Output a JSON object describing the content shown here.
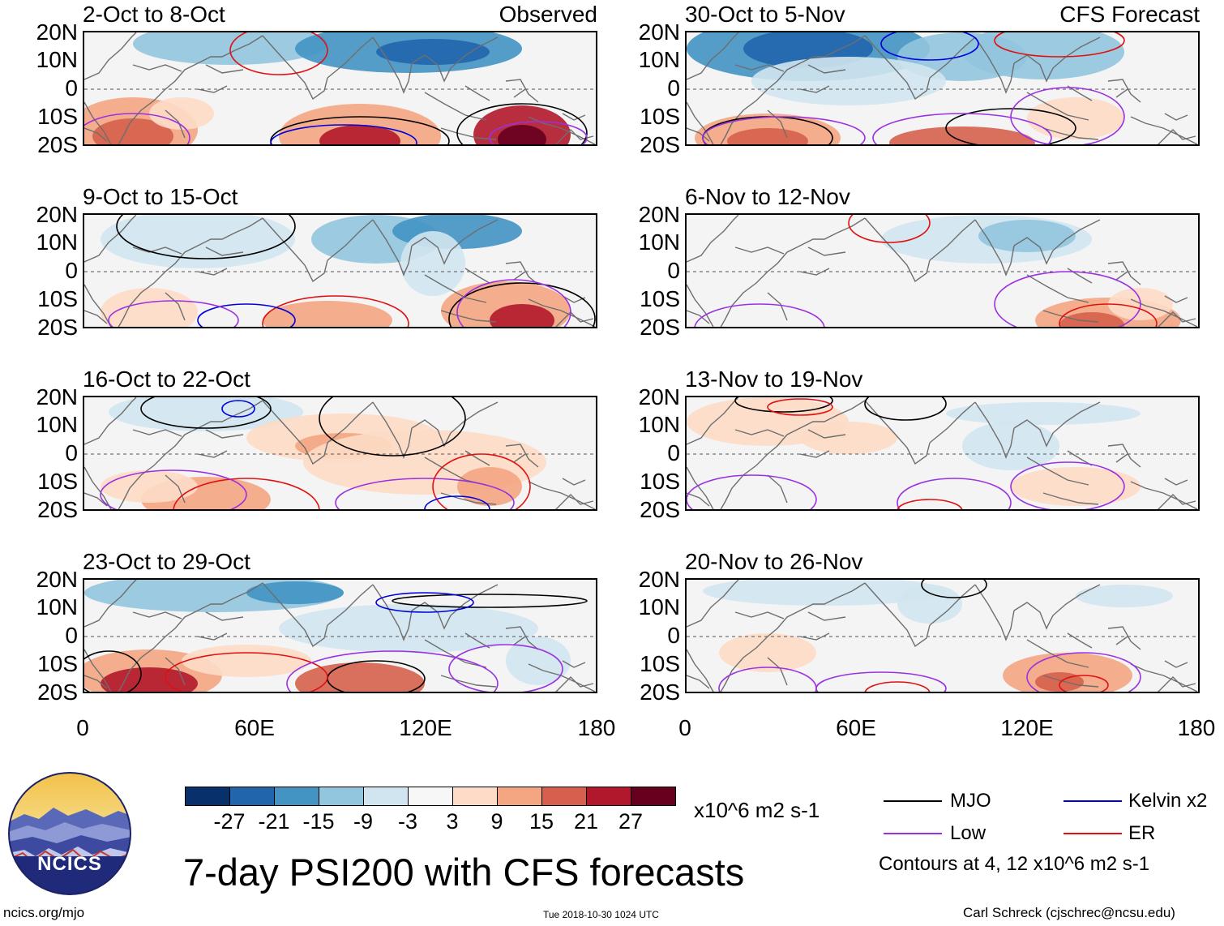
{
  "panels": [
    {
      "id": "p-oct02",
      "title": "2-Oct to 8-Oct",
      "tag": "Observed"
    },
    {
      "id": "p-oct09",
      "title": "9-Oct to 15-Oct",
      "tag": ""
    },
    {
      "id": "p-oct16",
      "title": "16-Oct to 22-Oct",
      "tag": ""
    },
    {
      "id": "p-oct23",
      "title": "23-Oct to 29-Oct",
      "tag": ""
    },
    {
      "id": "p-oct30",
      "title": "30-Oct to 5-Nov",
      "tag": "CFS Forecast"
    },
    {
      "id": "p-nov06",
      "title": "6-Nov to 12-Nov",
      "tag": ""
    },
    {
      "id": "p-nov13",
      "title": "13-Nov to 19-Nov",
      "tag": ""
    },
    {
      "id": "p-nov20",
      "title": "20-Nov to 26-Nov",
      "tag": ""
    }
  ],
  "lat_labels": [
    "20N",
    "10N",
    "0",
    "10S",
    "20S"
  ],
  "lon_labels": [
    "0",
    "60E",
    "120E",
    "180"
  ],
  "colorbar": {
    "colors": [
      "#08306b",
      "#2166ac",
      "#4393c3",
      "#92c5de",
      "#d1e5f0",
      "#f7f7f7",
      "#fddbc7",
      "#f4a582",
      "#d6604d",
      "#b2182b",
      "#67001f"
    ],
    "ticks": [
      "-27",
      "-21",
      "-15",
      "-9",
      "-3",
      "3",
      "9",
      "15",
      "21",
      "27"
    ],
    "units": "x10^6 m2 s-1"
  },
  "legend": {
    "items": [
      {
        "label": "MJO",
        "color": "#000000"
      },
      {
        "label": "Kelvin x2",
        "color": "#0000dd"
      },
      {
        "label": "Low",
        "color": "#9b30e0"
      },
      {
        "label": "ER",
        "color": "#e01010"
      }
    ],
    "contours_note": "Contours at 4, 12 x10^6 m2 s-1"
  },
  "logo_text": "NCICS",
  "main_title": "7-day PSI200 with CFS forecasts",
  "footer": {
    "url": "ncics.org/mjo",
    "timestamp": "Tue 2018-10-30 1024 UTC",
    "credit": "Carl Schreck (cjschrec@ncsu.edu)"
  }
}
